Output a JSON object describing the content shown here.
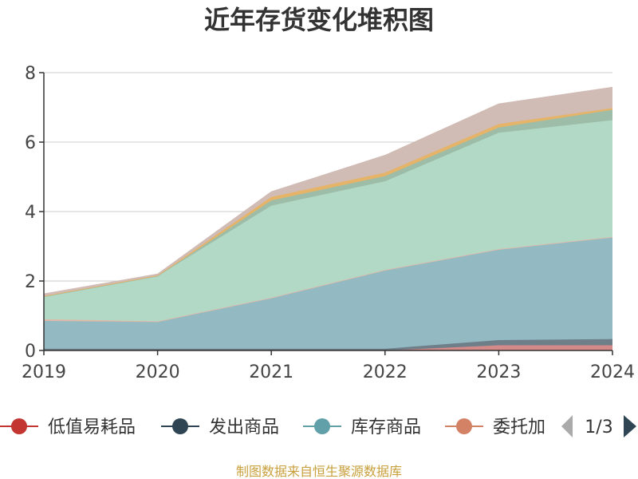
{
  "chart_data": {
    "type": "area",
    "stacked": true,
    "title": "近年存货变化堆积图",
    "x": [
      "2019",
      "2020",
      "2021",
      "2022",
      "2023",
      "2024"
    ],
    "ylim": [
      0,
      8
    ],
    "yticks": [
      0,
      2,
      4,
      6,
      8
    ],
    "grid": true,
    "legend_placement": "bottom",
    "series": [
      {
        "name": "低值易耗品",
        "color": "#c23531",
        "fill": "#d48a88",
        "values": [
          0.0,
          0.0,
          0.0,
          0.0,
          0.15,
          0.15
        ]
      },
      {
        "name": "发出商品",
        "color": "#2f4554",
        "fill": "#6e7f8a",
        "values": [
          0.05,
          0.05,
          0.05,
          0.05,
          0.15,
          0.18
        ]
      },
      {
        "name": "库存商品",
        "color": "#61a0a8",
        "fill": "#93bac2",
        "values": [
          0.8,
          0.77,
          1.45,
          2.25,
          2.6,
          2.92
        ]
      },
      {
        "name": "委托加工物资",
        "color": "#d48265",
        "fill": "#e0b8a8",
        "values": [
          0.05,
          0.02,
          0.02,
          0.02,
          0.02,
          0.02
        ]
      },
      {
        "name": "",
        "color": "#91c7ae",
        "fill": "#b2d9c6",
        "values": [
          0.65,
          1.3,
          2.65,
          2.55,
          3.35,
          3.36
        ]
      },
      {
        "name": "",
        "color": "#749f83",
        "fill": "#9dbda8",
        "values": [
          0.0,
          0.0,
          0.15,
          0.15,
          0.15,
          0.3
        ]
      },
      {
        "name": "",
        "color": "#ca8622",
        "fill": "#e6b468",
        "values": [
          0.02,
          0.02,
          0.1,
          0.1,
          0.1,
          0.05
        ]
      },
      {
        "name": "",
        "color": "#bda29a",
        "fill": "#d0bbb5",
        "values": [
          0.06,
          0.04,
          0.15,
          0.5,
          0.58,
          0.6
        ]
      }
    ]
  },
  "legend": {
    "visible_items": [
      {
        "label": "低值易耗品",
        "color": "#c23531"
      },
      {
        "label": "发出商品",
        "color": "#2f4554"
      },
      {
        "label": "库存商品",
        "color": "#61a0a8"
      },
      {
        "label": "委托加",
        "color": "#d48265"
      }
    ],
    "page_label": "1/3",
    "prev_icon": "triangle-left-icon",
    "next_icon": "triangle-right-icon"
  },
  "footer": {
    "source_text": "制图数据来自恒生聚源数据库"
  }
}
